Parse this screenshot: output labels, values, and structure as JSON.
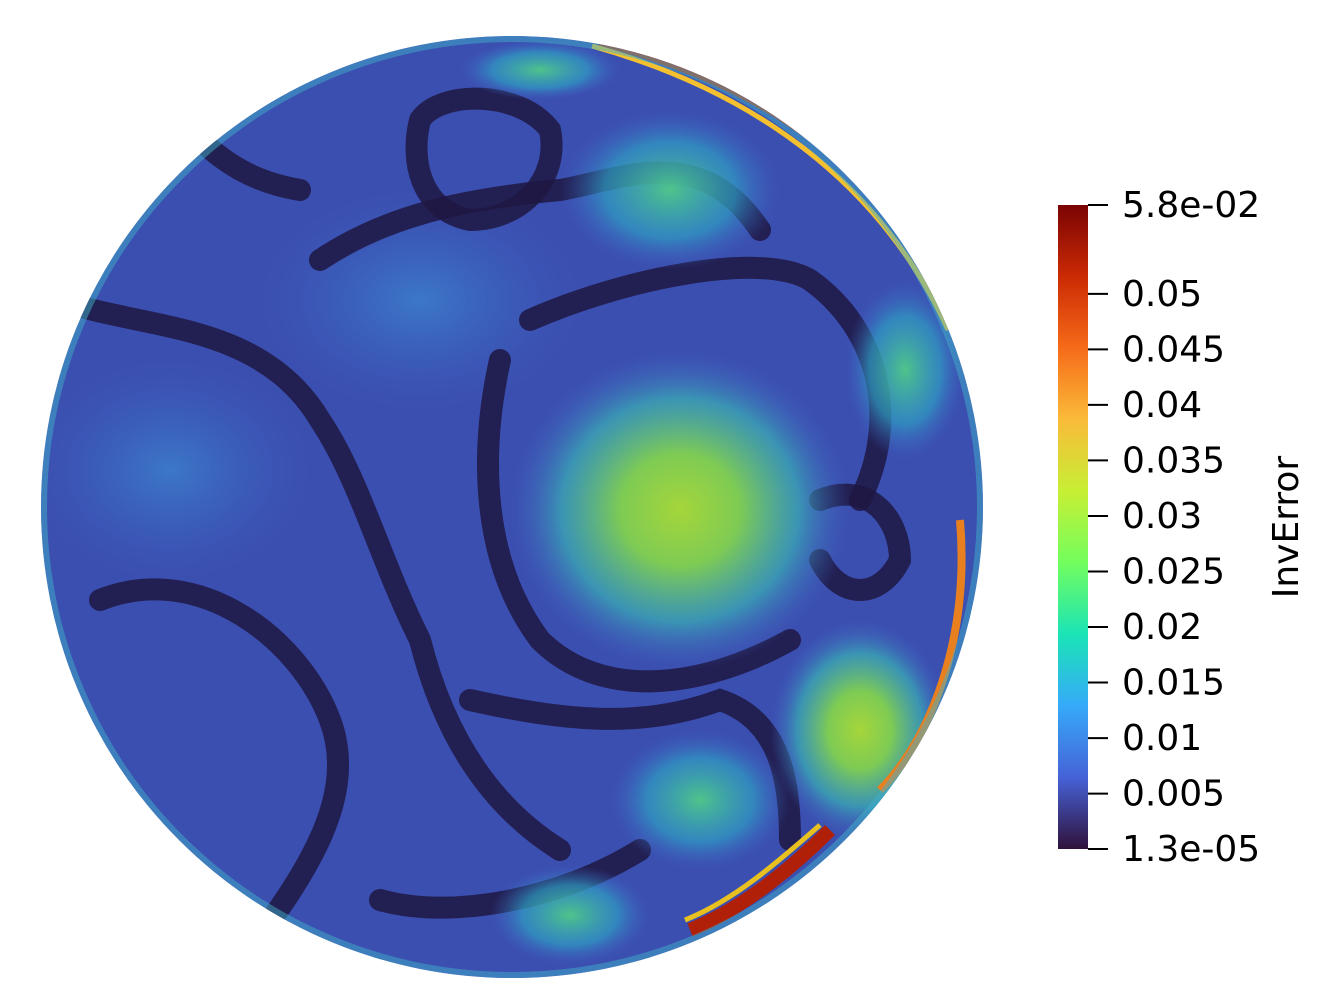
{
  "chart_data": {
    "type": "colormap-field",
    "colorbar_title": "InvError",
    "clim": [
      1.3e-05,
      0.058
    ],
    "cticks": [
      {
        "value": 1.3e-05,
        "label": "1.3e-05"
      },
      0.005,
      0.01,
      0.015,
      0.02,
      0.025,
      0.03,
      0.035,
      0.04,
      0.045,
      0.05,
      {
        "value": 0.058,
        "label": "5.8e-02"
      }
    ],
    "colormap": [
      "#30123b",
      "#4662d7",
      "#36aaf9",
      "#1ae4b6",
      "#72fe5e",
      "#c7ef34",
      "#fabb39",
      "#f66b19",
      "#cb2a04",
      "#7a0403"
    ]
  }
}
